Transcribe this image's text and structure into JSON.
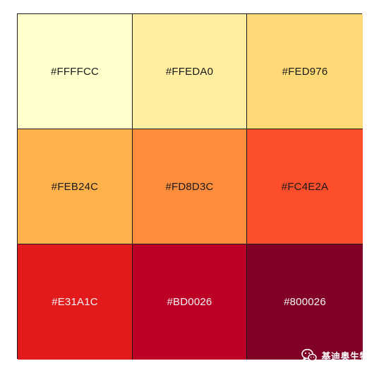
{
  "swatches": [
    {
      "label": "#FFFFCC",
      "color": "#FFFFCC",
      "text_color": "#1a1a1a"
    },
    {
      "label": "#FFEDA0",
      "color": "#FFEDA0",
      "text_color": "#1a1a1a"
    },
    {
      "label": "#FED976",
      "color": "#FED976",
      "text_color": "#1a1a1a"
    },
    {
      "label": "#FEB24C",
      "color": "#FEB24C",
      "text_color": "#1a1a1a"
    },
    {
      "label": "#FD8D3C",
      "color": "#FD8D3C",
      "text_color": "#1a1a1a"
    },
    {
      "label": "#FC4E2A",
      "color": "#FC4E2A",
      "text_color": "#1a1a1a"
    },
    {
      "label": "#E31A1C",
      "color": "#E31A1C",
      "text_color": "#f2f2f2"
    },
    {
      "label": "#BD0026",
      "color": "#BD0026",
      "text_color": "#f2f2f2"
    },
    {
      "label": "#800026",
      "color": "#800026",
      "text_color": "#f2f2f2"
    }
  ],
  "watermark": {
    "icon": "wechat-icon",
    "text": "基迪奥生物"
  }
}
